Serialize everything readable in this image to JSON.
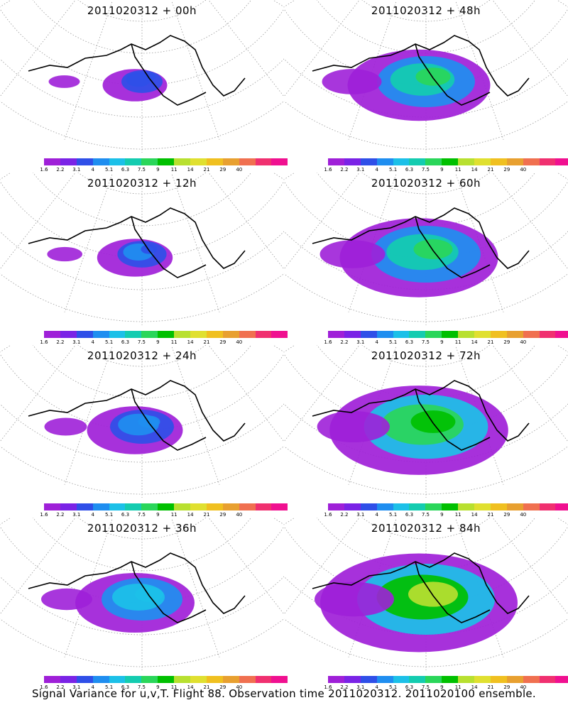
{
  "panels": [
    {
      "title": "2011020312 + 00h",
      "level": 0.05
    },
    {
      "title": "2011020312 + 48h",
      "level": 0.55
    },
    {
      "title": "2011020312 + 12h",
      "level": 0.12
    },
    {
      "title": "2011020312 + 60h",
      "level": 0.65
    },
    {
      "title": "2011020312 + 24h",
      "level": 0.25
    },
    {
      "title": "2011020312 + 72h",
      "level": 0.78
    },
    {
      "title": "2011020312 + 36h",
      "level": 0.4
    },
    {
      "title": "2011020312 + 84h",
      "level": 0.9
    }
  ],
  "colorbar": {
    "labels": [
      "1.6",
      "2.2",
      "3.1",
      "4",
      "5.1",
      "6.3",
      "7.5",
      "9",
      "11",
      "14",
      "21",
      "29",
      "40"
    ],
    "colors": [
      "#9f20d8",
      "#7a23e6",
      "#2f4fe8",
      "#1f8ef0",
      "#1cc0e8",
      "#14ccb0",
      "#2ad65a",
      "#00c000",
      "#b8e030",
      "#e0e030",
      "#f0c020",
      "#e8a030",
      "#f07050",
      "#f03070",
      "#f01090"
    ]
  },
  "footer": "Signal Variance for u,v,T. Flight 88. Observation time 2011020312. 2011020100 ensemble."
}
